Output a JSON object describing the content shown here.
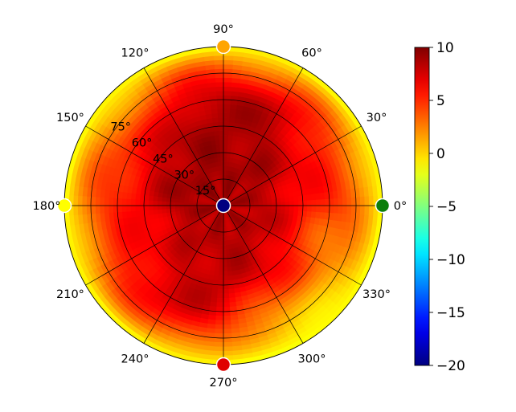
{
  "chart_data": {
    "type": "heatmap",
    "projection": "polar",
    "title": "",
    "angle_ticks": [
      "0°",
      "30°",
      "60°",
      "90°",
      "120°",
      "150°",
      "180°",
      "210°",
      "240°",
      "270°",
      "300°",
      "330°"
    ],
    "angle_tick_values": [
      0,
      30,
      60,
      90,
      120,
      150,
      180,
      210,
      240,
      270,
      300,
      330
    ],
    "radial_ticks": [
      "15°",
      "30°",
      "45°",
      "60°",
      "75°"
    ],
    "radial_tick_values": [
      15,
      30,
      45,
      60,
      75
    ],
    "radial_range": [
      0,
      90
    ],
    "grid": true,
    "colormap": "jet",
    "colorbar": {
      "min": -20,
      "max": 10,
      "ticks": [
        10,
        5,
        0,
        -5,
        -10,
        -15,
        -20
      ],
      "tick_labels": [
        "10",
        "5",
        "0",
        "−5",
        "−10",
        "−15",
        "−20"
      ]
    },
    "field": {
      "base": 7.5,
      "features": [
        {
          "az": 130,
          "el": 30,
          "value": 9.5
        },
        {
          "az": 75,
          "el": 30,
          "value": 9.0
        },
        {
          "az": 300,
          "el": 42,
          "value": 9.0
        },
        {
          "az": 20,
          "el": 70,
          "value": 5.0
        },
        {
          "az": 145,
          "el": 70,
          "value": 4.0
        },
        {
          "az": 190,
          "el": 70,
          "value": 5.0
        },
        {
          "az": 300,
          "el": 75,
          "value": -1.0
        },
        {
          "az": 330,
          "el": 70,
          "value": 1.5
        }
      ],
      "edge_value": -1.5
    },
    "markers": [
      {
        "az": 0,
        "el": 90,
        "color": "#0a7d0a"
      },
      {
        "az": 90,
        "el": 90,
        "color": "#ffa500"
      },
      {
        "az": 180,
        "el": 90,
        "color": "#ffff00"
      },
      {
        "az": 270,
        "el": 90,
        "color": "#e00000"
      },
      {
        "az": 0,
        "el": 0,
        "color": "#000080"
      }
    ]
  }
}
